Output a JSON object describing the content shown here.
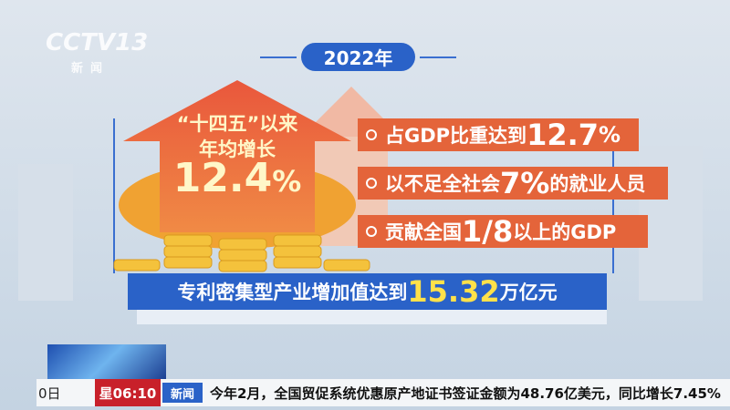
{
  "logo": {
    "channel": "CCTV13",
    "name": "新闻"
  },
  "year": "2022年",
  "arrow": {
    "line1": "“十四五”以来",
    "line2": "年均增长",
    "value": "12.4",
    "unit": "%"
  },
  "facts": [
    {
      "parts": [
        "占GDP比重达到",
        "12.7",
        "%"
      ]
    },
    {
      "parts": [
        "以不足全社会",
        "7%",
        "的就业人员"
      ]
    },
    {
      "parts": [
        "贡献全国",
        "1/8",
        "以上的GDP"
      ]
    }
  ],
  "banner": {
    "parts": [
      "专利密集型产业增加值达到",
      "15.32",
      "万亿元"
    ]
  },
  "ticker": {
    "date": "0日",
    "time": "星06:10",
    "channel": "新闻",
    "text": "今年2月，全国贸促系统优惠原产地证书签证金额为48.76亿美元，同比增长7.45%"
  }
}
